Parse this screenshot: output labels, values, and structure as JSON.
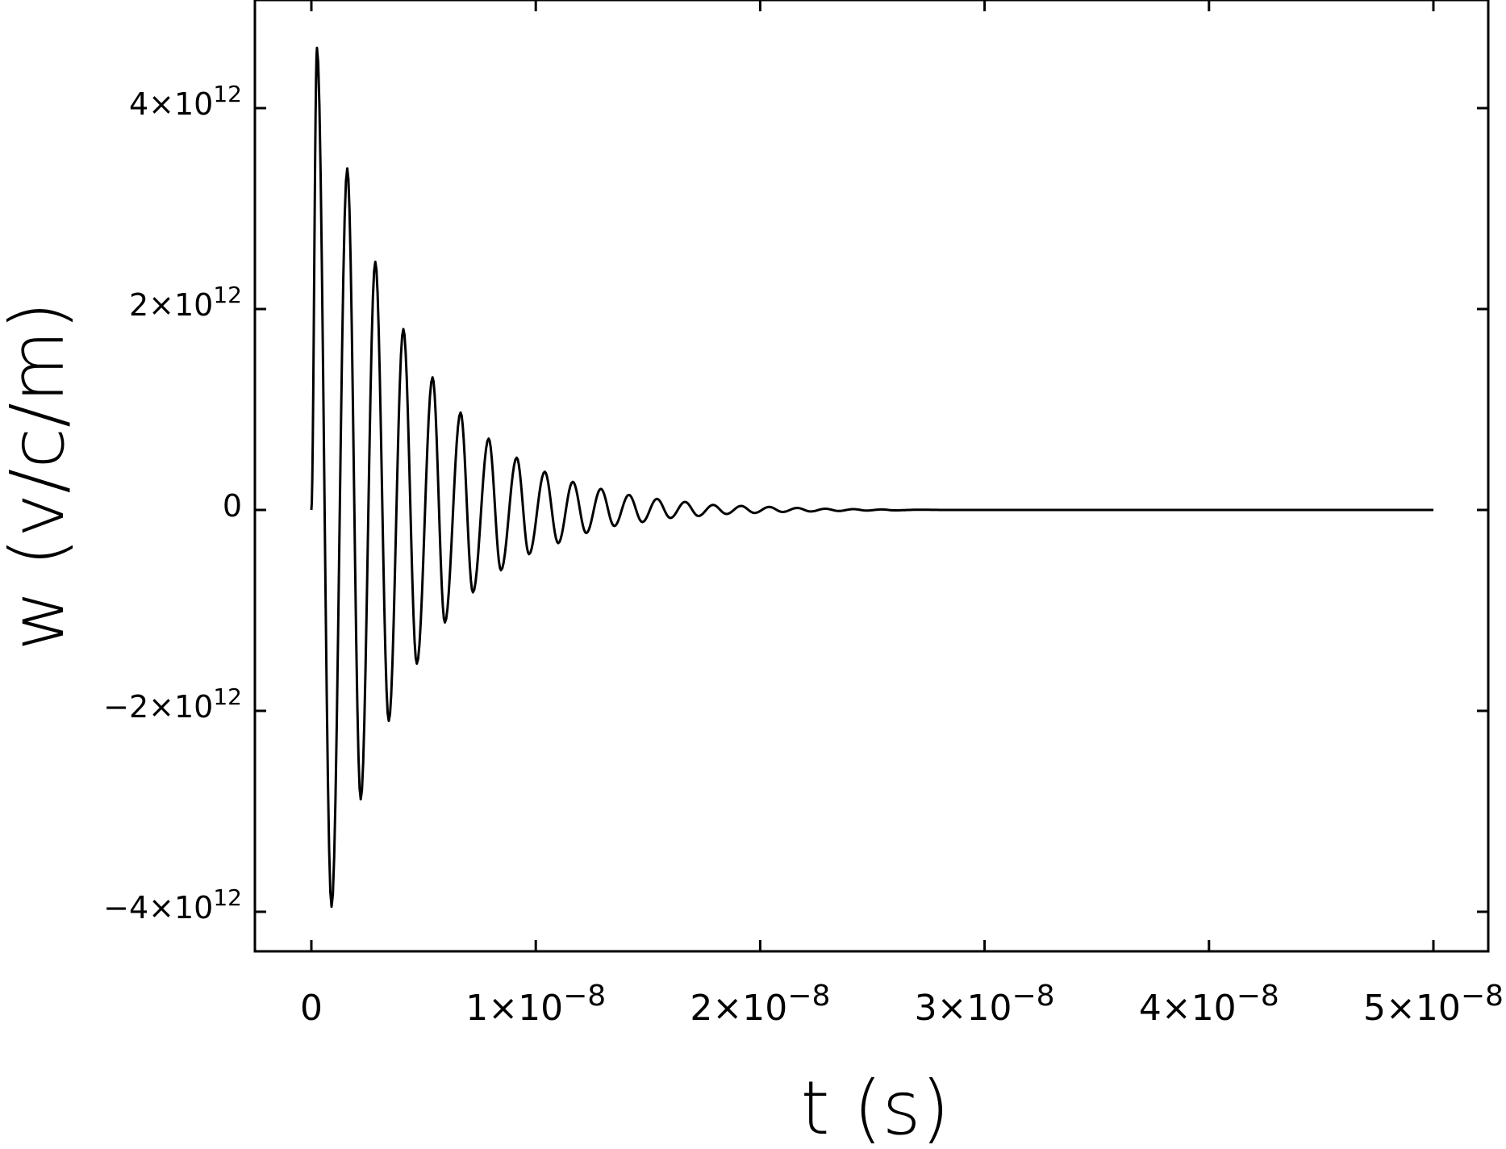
{
  "chart_data": {
    "type": "line",
    "xlabel": "t (s)",
    "ylabel": "w (v/c/m)",
    "xlim": [
      -2.5e-09,
      5.25e-08
    ],
    "ylim": [
      -4400000000000.0,
      5000000000000.0
    ],
    "x_ticks": [
      {
        "value": 0,
        "mant": "0",
        "exp": ""
      },
      {
        "value": 1e-08,
        "mant": "1×10",
        "exp": "−8"
      },
      {
        "value": 2e-08,
        "mant": "2×10",
        "exp": "−8"
      },
      {
        "value": 3e-08,
        "mant": "3×10",
        "exp": "−8"
      },
      {
        "value": 4e-08,
        "mant": "4×10",
        "exp": "−8"
      },
      {
        "value": 5e-08,
        "mant": "5×10",
        "exp": "−8"
      }
    ],
    "y_ticks": [
      {
        "value": 4000000000000.0,
        "mant": "4×10",
        "exp": "12"
      },
      {
        "value": 2000000000000.0,
        "mant": "2×10",
        "exp": "12"
      },
      {
        "value": 0,
        "mant": "0",
        "exp": ""
      },
      {
        "value": -2000000000000.0,
        "mant": "−2×10",
        "exp": "12"
      },
      {
        "value": -4000000000000.0,
        "mant": "−4×10",
        "exp": "12"
      }
    ],
    "grid": false,
    "series": [
      {
        "color": "#000000",
        "description_of_shape": "damped oscillation",
        "points": [
          [
            0.0,
            0.0
          ],
          [
            2.5e-10,
            4600000000000.0
          ],
          [
            9e-10,
            -3950000000000.0
          ],
          [
            1.6e-09,
            3400000000000.0
          ],
          [
            2.2e-09,
            -2880000000000.0
          ],
          [
            2.85e-09,
            2470000000000.0
          ],
          [
            3.45e-09,
            -2100000000000.0
          ],
          [
            4.1e-09,
            1800000000000.0
          ],
          [
            4.7e-09,
            -1530000000000.0
          ],
          [
            5.4e-09,
            1320000000000.0
          ],
          [
            5.95e-09,
            -1120000000000.0
          ],
          [
            6.65e-09,
            970000000000.0
          ],
          [
            7.2e-09,
            -820000000000.0
          ],
          [
            7.9e-09,
            710000000000.0
          ],
          [
            8.45e-09,
            -600000000000.0
          ],
          [
            9.15e-09,
            520000000000.0
          ],
          [
            9.7e-09,
            -440000000000.0
          ],
          [
            1.04e-08,
            380000000000.0
          ],
          [
            1.1e-08,
            -330000000000.0
          ],
          [
            1.165e-08,
            280000000000.0
          ],
          [
            1.225e-08,
            -230000000000.0
          ],
          [
            1.29e-08,
            210000000000.0
          ],
          [
            1.35e-08,
            -160000000000.0
          ],
          [
            1.415e-08,
            150000000000.0
          ],
          [
            1.475e-08,
            -120000000000.0
          ],
          [
            1.54e-08,
            110000000000.0
          ],
          [
            1.6e-08,
            -80000000000.0
          ],
          [
            1.665e-08,
            80000000000.0
          ],
          [
            1.725e-08,
            -60000000000.0
          ],
          [
            1.79e-08,
            50000000000.0
          ],
          [
            1.85e-08,
            -40000000000.0
          ],
          [
            1.915e-08,
            40000000000.0
          ],
          [
            1.975e-08,
            -30000000000.0
          ],
          [
            2.04e-08,
            30000000000.0
          ],
          [
            2.1e-08,
            -20000000000.0
          ],
          [
            2.165e-08,
            20000000000.0
          ],
          [
            2.225e-08,
            -15000000000.0
          ],
          [
            2.29e-08,
            12000000000.0
          ],
          [
            2.35e-08,
            -10000000000.0
          ],
          [
            2.415e-08,
            8000000000.0
          ],
          [
            2.475e-08,
            -6000000000.0
          ],
          [
            2.54e-08,
            5000000000.0
          ],
          [
            2.6e-08,
            -4000000000.0
          ],
          [
            2.7e-08,
            2000000000.0
          ],
          [
            2.85e-08,
            0.0
          ],
          [
            5e-08,
            0.0
          ]
        ]
      }
    ]
  }
}
